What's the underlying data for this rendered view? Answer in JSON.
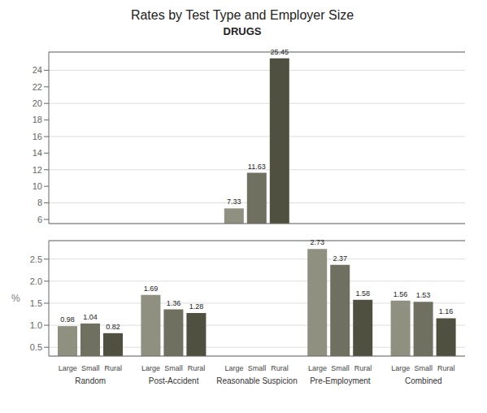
{
  "chart_data": [
    {
      "type": "bar",
      "title": "Rates by Test Type and Employer Size",
      "subtitle": "DRUGS",
      "categories": [
        "Random",
        "Post-Accident",
        "Reasonable Suspicion",
        "Pre-Employment",
        "Combined"
      ],
      "series": [
        {
          "name": "Large",
          "color": "#909080",
          "values": [
            null,
            null,
            7.33,
            null,
            null
          ]
        },
        {
          "name": "Small",
          "color": "#707060",
          "values": [
            null,
            null,
            11.63,
            null,
            null
          ]
        },
        {
          "name": "Rural",
          "color": "#505040",
          "values": [
            null,
            null,
            25.45,
            null,
            null
          ]
        }
      ],
      "ylim": [
        5.5,
        26.2
      ],
      "yticks": [
        6.0,
        8.0,
        10.0,
        12.0,
        14.0,
        16.0,
        18.0,
        20.0,
        22.0,
        24.0
      ],
      "grid": true,
      "data_labels": true,
      "tick_labels": "y"
    },
    {
      "type": "bar",
      "ylabel": "%",
      "categories": [
        "Random",
        "Post-Accident",
        "Reasonable Suspicion",
        "Pre-Employment",
        "Combined"
      ],
      "series": [
        {
          "name": "Large",
          "color": "#909080",
          "values": [
            0.98,
            1.69,
            null,
            2.73,
            1.56
          ]
        },
        {
          "name": "Small",
          "color": "#707060",
          "values": [
            1.04,
            1.36,
            null,
            2.37,
            1.53
          ]
        },
        {
          "name": "Rural",
          "color": "#505040",
          "values": [
            0.82,
            1.28,
            null,
            1.58,
            1.16
          ]
        }
      ],
      "ylim": [
        0.3,
        2.92
      ],
      "yticks": [
        0.5,
        {
          "value": 1.0,
          "label": "1.0"
        },
        1.5,
        {
          "value": 2.0,
          "label": "2.0"
        },
        2.5
      ],
      "grid": true,
      "data_labels": true
    }
  ]
}
